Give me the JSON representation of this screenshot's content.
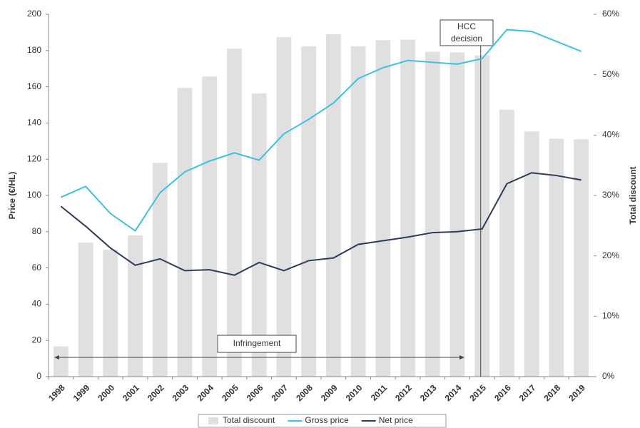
{
  "chart_data": {
    "type": "combo",
    "y_label": "Price (€/HL)",
    "y2_label": "Total discount",
    "annotations": [
      "HCC decision",
      "Infringement"
    ],
    "categories": [
      "1998",
      "1999",
      "2000",
      "2001",
      "2002",
      "2003",
      "2004",
      "2005",
      "2006",
      "2007",
      "2008",
      "2009",
      "2010",
      "2011",
      "2012",
      "2013",
      "2014",
      "2015",
      "2016",
      "2017",
      "2018",
      "2019"
    ],
    "series": [
      {
        "name": "Total discount",
        "type": "bar",
        "axis": "y2",
        "color": "#e0e0e0",
        "values": [
          5,
          22.2,
          21,
          23.4,
          35.4,
          47.8,
          49.7,
          54.3,
          46.9,
          56.2,
          54.7,
          56.7,
          54.7,
          55.7,
          55.8,
          53.8,
          53.7,
          53.2,
          44.2,
          40.6,
          39.4,
          39.3
        ]
      },
      {
        "name": "Gross price",
        "type": "line",
        "color": "#3ec0e0",
        "values": [
          99,
          105,
          90,
          80.5,
          101.5,
          113,
          119,
          123.5,
          119.5,
          134,
          142,
          151,
          164.5,
          170.5,
          174.5,
          173.5,
          172.5,
          175.5,
          191.5,
          190.5,
          185,
          179.5
        ]
      },
      {
        "name": "Net price",
        "type": "line",
        "color": "#2d3b5a",
        "values": [
          94,
          83,
          71,
          61.5,
          65,
          58.5,
          59,
          56,
          63,
          58.5,
          64,
          65.5,
          73,
          75,
          77,
          79.5,
          80,
          81.5,
          106.5,
          112.5,
          111,
          108.5
        ]
      }
    ],
    "ylim": [
      0,
      200
    ],
    "yticks": [
      0,
      20,
      40,
      60,
      80,
      100,
      120,
      140,
      160,
      180,
      200
    ],
    "y2lim": [
      0,
      60
    ],
    "y2ticks": [
      {
        "value": 0,
        "label": "0%"
      },
      {
        "value": 10,
        "label": "10%"
      },
      {
        "value": 20,
        "label": "20%"
      },
      {
        "value": 30,
        "label": "30%"
      },
      {
        "value": 40,
        "label": "40%"
      },
      {
        "value": 50,
        "label": "50%"
      },
      {
        "value": 60,
        "label": "60%"
      }
    ],
    "grid": false,
    "legend": "bottom"
  }
}
